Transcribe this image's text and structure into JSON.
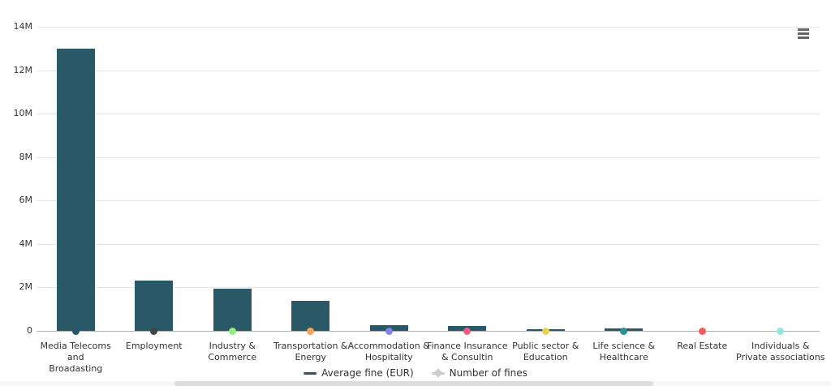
{
  "colors": {
    "bar": "#295966",
    "grid": "#e6e6e6",
    "axis": "#b3b3b3",
    "text": "#333333",
    "hamburger": "#666666"
  },
  "icons": {
    "context_menu": "hamburger-icon",
    "legend_average_fine_marker": "line-marker-icon",
    "legend_number_of_fines_marker": "diamond-marker-icon"
  },
  "legend": {
    "items": [
      {
        "label": "Average fine (EUR)",
        "color": "#295966",
        "marker": "line"
      },
      {
        "label": "Number of fines",
        "color": "#cccccc",
        "marker": "diamond-line"
      }
    ]
  },
  "chart_data": {
    "type": "bar",
    "title": "",
    "xlabel": "",
    "ylabel": "",
    "categories": [
      "Media Telecoms and\nBroadasting",
      "Employment",
      "Industry &\nCommerce",
      "Transportation &\nEnergy",
      "Accommodation &\nHospitality",
      "Finance Insurance\n& Consultin",
      "Public sector &\nEducation",
      "Life science &\nHealthcare",
      "Real Estate",
      "Individuals &\nPrivate associations"
    ],
    "series": [
      {
        "name": "Average fine (EUR)",
        "type": "column",
        "color": "#295966",
        "values": [
          13000000,
          2300000,
          1950000,
          1400000,
          270000,
          230000,
          90000,
          100000,
          0,
          0
        ]
      },
      {
        "name": "Number of fines",
        "type": "scatter",
        "note": "point markers drawn at the axis baseline; numeric values not readable at this scale",
        "marker_colors": [
          "#2a5766",
          "#434348",
          "#90ed7d",
          "#f7a35c",
          "#8085e9",
          "#f15c80",
          "#e4d354",
          "#2b908f",
          "#f45b5b",
          "#91e8e1"
        ]
      }
    ],
    "yticks": [
      "0",
      "2M",
      "4M",
      "6M",
      "8M",
      "10M",
      "12M",
      "14M"
    ],
    "ytick_values": [
      0,
      2000000,
      4000000,
      6000000,
      8000000,
      10000000,
      12000000,
      14000000
    ],
    "ylim": [
      0,
      14000000
    ],
    "grid": "horizontal",
    "legend_position": "bottom-center"
  }
}
